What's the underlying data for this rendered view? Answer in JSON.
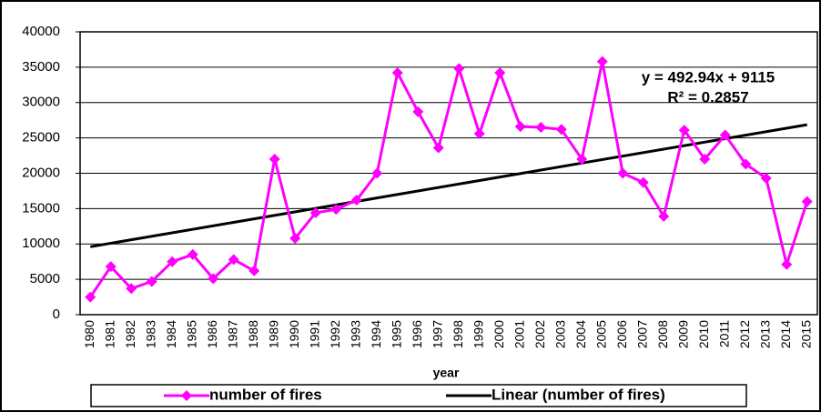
{
  "chart_data": {
    "type": "line",
    "x_label": "year",
    "categories": [
      "1980",
      "1981",
      "1982",
      "1983",
      "1984",
      "1985",
      "1986",
      "1987",
      "1988",
      "1989",
      "1990",
      "1991",
      "1992",
      "1993",
      "1994",
      "1995",
      "1996",
      "1997",
      "1998",
      "1999",
      "2000",
      "2001",
      "2002",
      "2003",
      "2004",
      "2005",
      "2006",
      "2007",
      "2008",
      "2009",
      "2010",
      "2011",
      "2012",
      "2013",
      "2014",
      "2015"
    ],
    "series": [
      {
        "name": "number of fires",
        "color": "#ff00ff",
        "values": [
          2500,
          6800,
          3700,
          4700,
          7500,
          8500,
          5100,
          7800,
          6200,
          22000,
          10800,
          14400,
          14900,
          16200,
          20000,
          34200,
          28700,
          23600,
          34800,
          25600,
          34200,
          26600,
          26500,
          26200,
          22000,
          35800,
          20000,
          18700,
          13900,
          26100,
          22000,
          25400,
          21300,
          19300,
          7100,
          16000
        ]
      }
    ],
    "trendline": {
      "name": "Linear (number of fires)",
      "color": "#000000",
      "equation": "y = 492.94x + 9115",
      "r_squared": "R² = 0.2857",
      "slope": 492.94,
      "intercept": 9115
    },
    "ylim": [
      0,
      40000
    ],
    "yticks": [
      0,
      5000,
      10000,
      15000,
      20000,
      25000,
      30000,
      35000,
      40000
    ],
    "grid": true,
    "legend": "bottom"
  }
}
